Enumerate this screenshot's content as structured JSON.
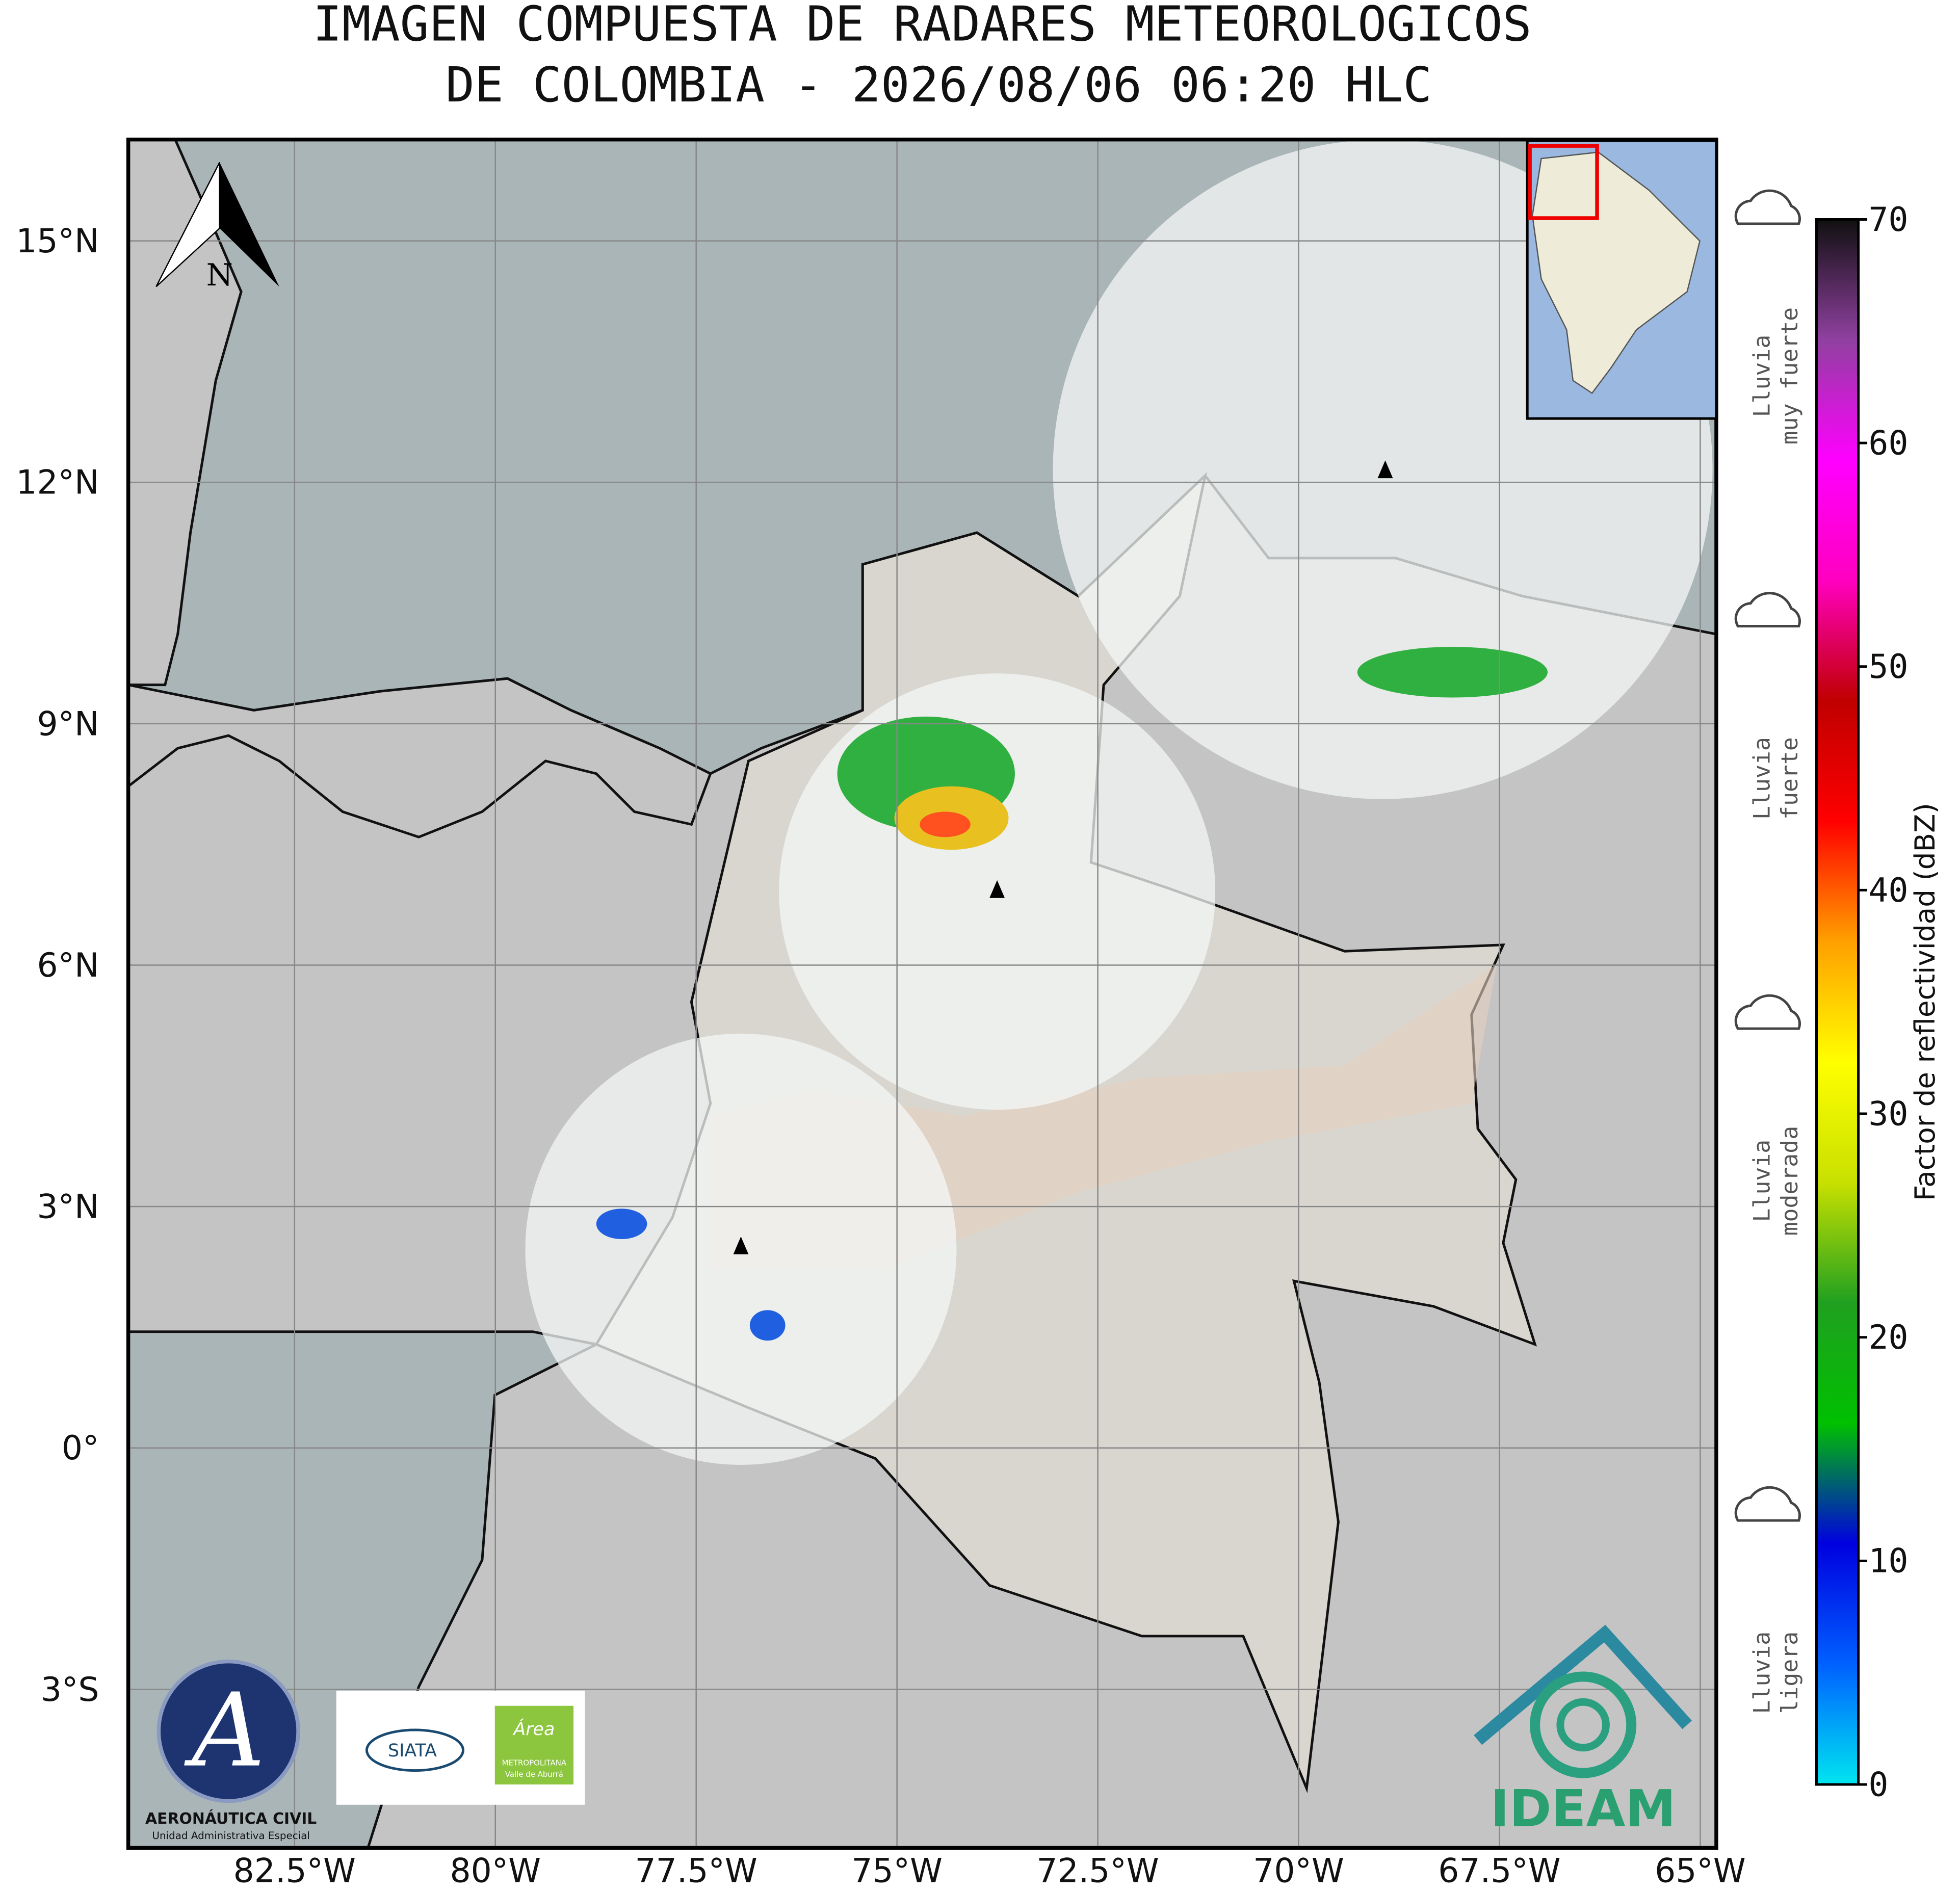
{
  "map": {
    "title": [
      "IMAGEN COMPUESTA DE RADARES METEOROLOGICOS",
      "DE COLOMBIA - 2026/08/06 06:20 HLC"
    ],
    "xlim": [
      -84.57,
      -64.8
    ],
    "ylim": [
      -4.97,
      16.26
    ],
    "xticks": [
      {
        "value": -82.5,
        "label": "82.5°W"
      },
      {
        "value": -80,
        "label": "80°W"
      },
      {
        "value": -77.5,
        "label": "77.5°W"
      },
      {
        "value": -75,
        "label": "75°W"
      },
      {
        "value": -72.5,
        "label": "72.5°W"
      },
      {
        "value": -70,
        "label": "70°W"
      },
      {
        "value": -67.5,
        "label": "67.5°W"
      },
      {
        "value": -65,
        "label": "65°W"
      }
    ],
    "yticks": [
      {
        "value": 15,
        "label": "15°N"
      },
      {
        "value": 12,
        "label": "12°N"
      },
      {
        "value": 9,
        "label": "9°N"
      },
      {
        "value": 6,
        "label": "6°N"
      },
      {
        "value": 3,
        "label": "3°N"
      },
      {
        "value": 0,
        "label": "0°"
      },
      {
        "value": -3,
        "label": "3°S"
      }
    ],
    "grid": true,
    "north_label": "N",
    "colorbar": {
      "label": "Factor de reflectividad (dBZ)",
      "lim": [
        0,
        70
      ],
      "ticks": [
        0,
        10,
        20,
        30,
        40,
        50,
        60,
        70
      ],
      "colors": [
        "#00e5f0",
        "#0060ff",
        "#0000e0",
        "#00c000",
        "#20a020",
        "#c8e000",
        "#ffff00",
        "#ffa000",
        "#ff0000",
        "#c00000",
        "#ff00c0",
        "#ff00ff",
        "#9040a0",
        "#101010"
      ]
    },
    "rain_levels": [
      {
        "lines": [
          "Lluvia",
          "muy fuerte"
        ],
        "value": 63
      },
      {
        "lines": [
          "Lluvia",
          "fuerte"
        ],
        "value": 45
      },
      {
        "lines": [
          "Lluvia",
          "moderada"
        ],
        "value": 27
      },
      {
        "lines": [
          "Lluvia",
          "ligera"
        ],
        "value": 5
      }
    ],
    "logos": {
      "aerocivil": [
        "AERONÁUTICA CIVIL",
        "Unidad Administrativa Especial"
      ],
      "siata": "SIATA",
      "area": [
        "Área",
        "METROPOLITANA",
        "Valle de Aburrá"
      ],
      "ideam": "IDEAM"
    }
  }
}
